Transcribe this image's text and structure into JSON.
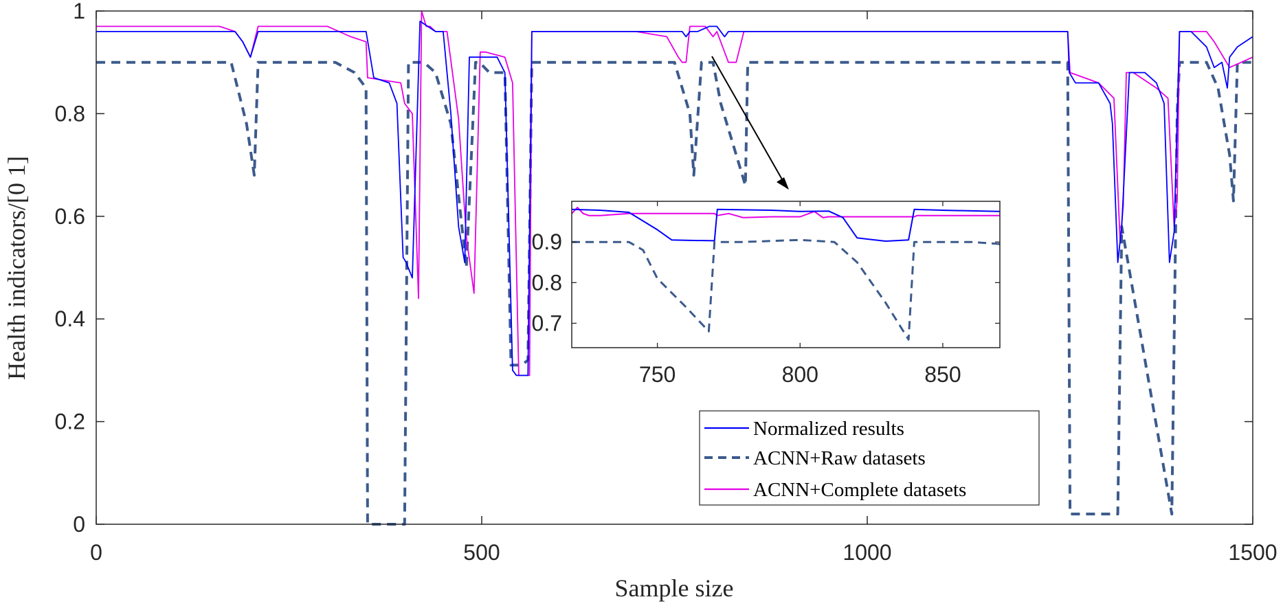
{
  "chart_data": {
    "type": "line",
    "xlabel": "Sample size",
    "ylabel": "Health indicators/[0 1]",
    "xlim": [
      0,
      1500
    ],
    "ylim": [
      0,
      1
    ],
    "xticks": [
      0,
      500,
      1000,
      1500
    ],
    "xtick_labels": [
      "0",
      "500",
      "1000",
      "1500"
    ],
    "yticks": [
      0,
      0.2,
      0.4,
      0.6,
      0.8,
      1
    ],
    "ytick_labels": [
      "0",
      "0.2",
      "0.4",
      "0.6",
      "0.8",
      "1"
    ],
    "legend": {
      "position": "bottom-right",
      "entries": [
        "Normalized results",
        "ACNN+Raw datasets",
        "ACNN+Complete datasets"
      ]
    },
    "series": [
      {
        "name": "Normalized results",
        "color": "#0000ff",
        "style": "solid",
        "x": [
          0,
          180,
          190,
          200,
          210,
          350,
          360,
          380,
          390,
          398,
          402,
          410,
          420,
          440,
          450,
          460,
          470,
          478,
          484,
          490,
          500,
          520,
          530,
          535,
          540,
          545,
          560,
          565,
          700,
          740,
          760,
          765,
          770,
          780,
          795,
          805,
          815,
          820,
          840,
          845,
          1000,
          1260,
          1262,
          1270,
          1300,
          1315,
          1318,
          1325,
          1330,
          1340,
          1360,
          1375,
          1385,
          1392,
          1398,
          1405,
          1410,
          1420,
          1440,
          1450,
          1460,
          1467,
          1470,
          1480,
          1500
        ],
        "values": [
          0.96,
          0.96,
          0.94,
          0.91,
          0.96,
          0.96,
          0.87,
          0.86,
          0.82,
          0.52,
          0.51,
          0.48,
          0.98,
          0.96,
          0.96,
          0.8,
          0.58,
          0.51,
          0.91,
          0.91,
          0.91,
          0.91,
          0.88,
          0.59,
          0.3,
          0.29,
          0.29,
          0.96,
          0.96,
          0.96,
          0.96,
          0.95,
          0.96,
          0.96,
          0.97,
          0.97,
          0.95,
          0.96,
          0.96,
          0.96,
          0.96,
          0.96,
          0.88,
          0.86,
          0.86,
          0.82,
          0.78,
          0.51,
          0.58,
          0.88,
          0.88,
          0.86,
          0.82,
          0.51,
          0.57,
          0.96,
          0.96,
          0.96,
          0.93,
          0.89,
          0.9,
          0.85,
          0.91,
          0.93,
          0.95
        ]
      },
      {
        "name": "ACNN+Raw datasets",
        "color": "#3c5a8c",
        "style": "dashed",
        "x": [
          0,
          175,
          195,
          205,
          210,
          310,
          335,
          350,
          352,
          400,
          405,
          425,
          440,
          460,
          480,
          492,
          497,
          510,
          530,
          538,
          552,
          560,
          565,
          750,
          770,
          775,
          785,
          800,
          810,
          830,
          842,
          845,
          1000,
          1260,
          1263,
          1325,
          1330,
          1395,
          1402,
          1405,
          1440,
          1455,
          1470,
          1475,
          1480,
          1500
        ],
        "values": [
          0.9,
          0.9,
          0.78,
          0.68,
          0.9,
          0.9,
          0.88,
          0.85,
          0.0,
          0.0,
          0.9,
          0.9,
          0.88,
          0.78,
          0.5,
          0.9,
          0.9,
          0.88,
          0.88,
          0.31,
          0.31,
          0.32,
          0.9,
          0.9,
          0.8,
          0.68,
          0.9,
          0.9,
          0.82,
          0.72,
          0.66,
          0.9,
          0.9,
          0.9,
          0.02,
          0.02,
          0.58,
          0.02,
          0.8,
          0.9,
          0.9,
          0.85,
          0.72,
          0.63,
          0.9,
          0.9
        ]
      },
      {
        "name": "ACNN+Complete datasets",
        "color": "#e600e6",
        "style": "solid",
        "x": [
          0,
          160,
          180,
          190,
          200,
          210,
          300,
          330,
          350,
          352,
          395,
          400,
          410,
          418,
          422,
          428,
          433,
          440,
          455,
          470,
          480,
          490,
          498,
          505,
          530,
          540,
          548,
          562,
          565,
          700,
          740,
          755,
          760,
          765,
          770,
          790,
          800,
          805,
          820,
          830,
          840,
          1260,
          1263,
          1300,
          1320,
          1328,
          1332,
          1336,
          1345,
          1375,
          1390,
          1398,
          1402,
          1405,
          1420,
          1440,
          1450,
          1470,
          1500
        ],
        "values": [
          0.97,
          0.97,
          0.96,
          0.94,
          0.91,
          0.97,
          0.97,
          0.95,
          0.94,
          0.87,
          0.86,
          0.82,
          0.8,
          0.44,
          1.0,
          0.97,
          0.97,
          0.96,
          0.96,
          0.79,
          0.56,
          0.45,
          0.92,
          0.92,
          0.91,
          0.86,
          0.29,
          0.29,
          0.96,
          0.96,
          0.95,
          0.91,
          0.9,
          0.9,
          0.97,
          0.97,
          0.95,
          0.96,
          0.9,
          0.9,
          0.96,
          0.96,
          0.88,
          0.86,
          0.83,
          0.55,
          0.62,
          0.88,
          0.88,
          0.85,
          0.83,
          0.58,
          0.63,
          0.96,
          0.96,
          0.96,
          0.94,
          0.89,
          0.91
        ]
      }
    ],
    "inset": {
      "xlim": [
        720,
        870
      ],
      "ylim": [
        0.64,
        1.0
      ],
      "xticks": [
        750,
        800,
        850
      ],
      "xtick_labels": [
        "750",
        "800",
        "850"
      ],
      "yticks": [
        0.7,
        0.8,
        0.9
      ],
      "ytick_labels": [
        "0.7",
        "0.8",
        "0.9"
      ],
      "series": [
        {
          "name": "Normalized results",
          "x": [
            720,
            730,
            740,
            750,
            755,
            760,
            770,
            771,
            790,
            800,
            810,
            815,
            820,
            830,
            838,
            840,
            850,
            870
          ],
          "values": [
            0.98,
            0.978,
            0.973,
            0.93,
            0.905,
            0.904,
            0.903,
            0.98,
            0.978,
            0.975,
            0.976,
            0.96,
            0.91,
            0.902,
            0.905,
            0.98,
            0.978,
            0.975
          ],
          "jitter": 0.0
        },
        {
          "name": "ACNN+Raw datasets",
          "x": [
            720,
            740,
            745,
            750,
            760,
            768,
            770,
            780,
            800,
            812,
            820,
            830,
            838,
            840,
            850,
            860,
            870
          ],
          "values": [
            0.9,
            0.9,
            0.88,
            0.81,
            0.74,
            0.68,
            0.9,
            0.9,
            0.905,
            0.9,
            0.85,
            0.75,
            0.66,
            0.9,
            0.9,
            0.9,
            0.895
          ],
          "jitter": 0.0
        },
        {
          "name": "ACNN+Complete datasets",
          "x": [
            720,
            722,
            724,
            726,
            730,
            740,
            770,
            771,
            775,
            780,
            790,
            800,
            805,
            808,
            810,
            815,
            840,
            841,
            850,
            860,
            870
          ],
          "values": [
            0.97,
            0.985,
            0.97,
            0.965,
            0.965,
            0.97,
            0.97,
            0.965,
            0.97,
            0.96,
            0.962,
            0.962,
            0.975,
            0.96,
            0.962,
            0.962,
            0.962,
            0.965,
            0.965,
            0.965,
            0.965
          ],
          "jitter": 0.0
        }
      ]
    }
  }
}
